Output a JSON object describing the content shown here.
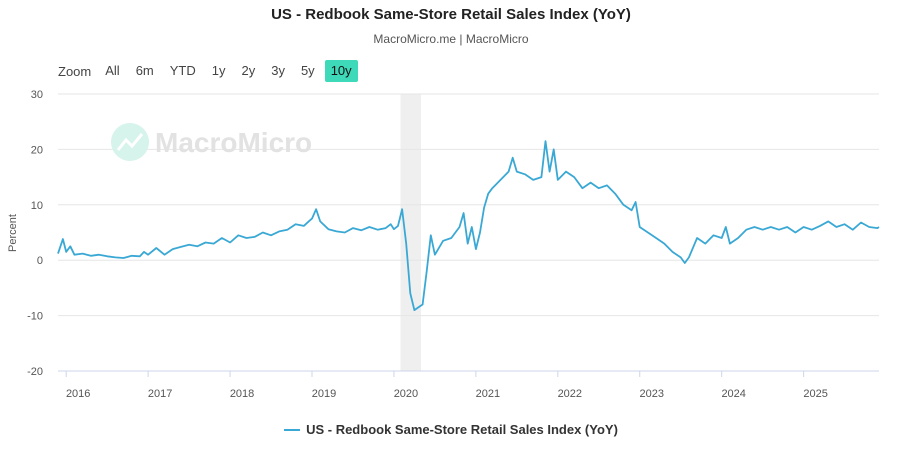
{
  "header": {
    "title": "US - Redbook Same-Store Retail Sales Index (YoY)",
    "subtitle": "MacroMicro.me | MacroMicro"
  },
  "range_selector": {
    "label": "Zoom",
    "buttons": [
      "All",
      "6m",
      "YTD",
      "1y",
      "2y",
      "3y",
      "5y",
      "10y"
    ],
    "active": "10y"
  },
  "watermark": "MacroMicro",
  "colors": {
    "series": "#3aa8d4",
    "active_button": "#3dd9b9",
    "recession_band": "#efefef",
    "grid": "#e6e6e6"
  },
  "chart_data": {
    "type": "line",
    "title": "US - Redbook Same-Store Retail Sales Index (YoY)",
    "ylabel": "Percent",
    "xlabel": "",
    "ylim": [
      -20,
      30
    ],
    "yticks": [
      -20,
      -10,
      0,
      10,
      20,
      30
    ],
    "xlim": [
      2015.9,
      2025.92
    ],
    "xticks": [
      "2016",
      "2017",
      "2018",
      "2019",
      "2020",
      "2021",
      "2022",
      "2023",
      "2024",
      "2025"
    ],
    "shaded_band": {
      "from": 2020.08,
      "to": 2020.33,
      "label": ""
    },
    "series": [
      {
        "name": "US - Redbook Same-Store Retail Sales Index (YoY)",
        "x": [
          2015.9,
          2015.96,
          2016.0,
          2016.05,
          2016.1,
          2016.2,
          2016.3,
          2016.4,
          2016.5,
          2016.6,
          2016.7,
          2016.8,
          2016.9,
          2016.95,
          2017.0,
          2017.1,
          2017.2,
          2017.3,
          2017.4,
          2017.5,
          2017.6,
          2017.7,
          2017.8,
          2017.9,
          2018.0,
          2018.1,
          2018.2,
          2018.3,
          2018.4,
          2018.5,
          2018.6,
          2018.7,
          2018.8,
          2018.9,
          2018.96,
          2019.0,
          2019.05,
          2019.1,
          2019.2,
          2019.3,
          2019.4,
          2019.5,
          2019.6,
          2019.7,
          2019.8,
          2019.9,
          2019.96,
          2020.0,
          2020.05,
          2020.1,
          2020.15,
          2020.2,
          2020.25,
          2020.3,
          2020.35,
          2020.4,
          2020.45,
          2020.5,
          2020.6,
          2020.7,
          2020.8,
          2020.85,
          2020.9,
          2020.95,
          2021.0,
          2021.05,
          2021.1,
          2021.15,
          2021.2,
          2021.3,
          2021.4,
          2021.45,
          2021.5,
          2021.6,
          2021.7,
          2021.8,
          2021.85,
          2021.9,
          2021.95,
          2022.0,
          2022.1,
          2022.2,
          2022.3,
          2022.4,
          2022.5,
          2022.6,
          2022.7,
          2022.8,
          2022.9,
          2022.95,
          2023.0,
          2023.1,
          2023.2,
          2023.3,
          2023.4,
          2023.5,
          2023.55,
          2023.6,
          2023.7,
          2023.8,
          2023.9,
          2024.0,
          2024.05,
          2024.1,
          2024.2,
          2024.3,
          2024.4,
          2024.5,
          2024.6,
          2024.7,
          2024.8,
          2024.9,
          2025.0,
          2025.1,
          2025.2,
          2025.3,
          2025.4,
          2025.5,
          2025.6,
          2025.7,
          2025.8,
          2025.9,
          2025.92
        ],
        "values": [
          1.2,
          3.8,
          1.5,
          2.5,
          1.0,
          1.2,
          0.8,
          1.0,
          0.7,
          0.5,
          0.4,
          0.8,
          0.7,
          1.5,
          1.0,
          2.2,
          1.0,
          2.0,
          2.4,
          2.8,
          2.5,
          3.2,
          3.0,
          4.0,
          3.2,
          4.5,
          4.0,
          4.2,
          5.0,
          4.5,
          5.2,
          5.5,
          6.5,
          6.2,
          7.0,
          7.5,
          9.2,
          7.0,
          5.6,
          5.2,
          5.0,
          5.8,
          5.4,
          6.0,
          5.5,
          5.8,
          6.5,
          5.6,
          6.2,
          9.2,
          3.0,
          -6.0,
          -9.0,
          -8.5,
          -8.0,
          -2.0,
          4.5,
          1.0,
          3.5,
          4.0,
          6.0,
          8.5,
          3.0,
          6.0,
          2.0,
          5.0,
          9.5,
          12.0,
          13.0,
          14.5,
          16.0,
          18.5,
          16.0,
          15.5,
          14.5,
          15.0,
          21.5,
          16.0,
          20.0,
          14.5,
          16.0,
          15.0,
          13.0,
          14.0,
          13.0,
          13.5,
          12.0,
          10.0,
          9.0,
          10.5,
          6.0,
          5.0,
          4.0,
          3.0,
          1.5,
          0.5,
          -0.5,
          0.5,
          4.0,
          3.0,
          4.5,
          4.0,
          6.0,
          3.0,
          4.0,
          5.5,
          6.0,
          5.5,
          6.0,
          5.5,
          6.0,
          5.0,
          6.0,
          5.5,
          6.2,
          7.0,
          6.0,
          6.5,
          5.5,
          6.8,
          6.0,
          5.8,
          6.0
        ]
      }
    ],
    "legend": {
      "position": "bottom",
      "entries": [
        "US - Redbook Same-Store Retail Sales Index (YoY)"
      ]
    }
  }
}
